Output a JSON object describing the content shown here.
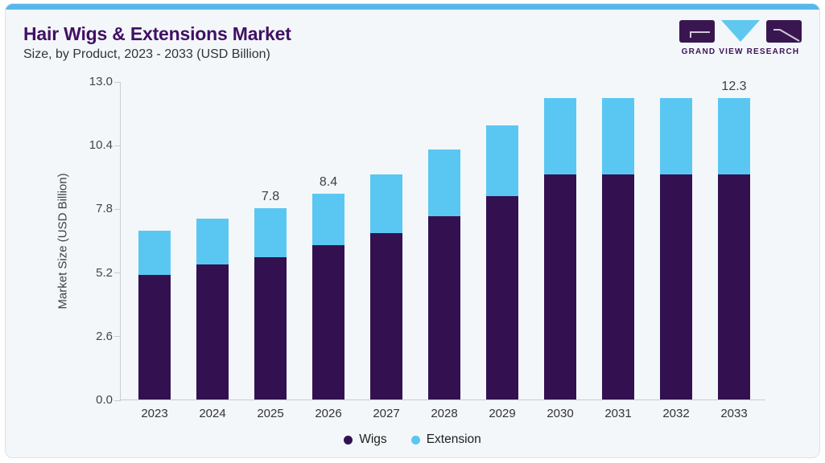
{
  "header": {
    "title": "Hair Wigs & Extensions Market",
    "subtitle": "Size, by Product, 2023 - 2033 (USD Billion)"
  },
  "logo": {
    "text": "GRAND VIEW RESEARCH",
    "block_color": "#3a1650",
    "triangle_color": "#5fc8ef",
    "glyph_line_color": "#cfcad6"
  },
  "colors": {
    "accent_bar": "#57b7e9",
    "card_background": "#f3f7fa",
    "card_border": "#d9e1e8",
    "axis_line": "#c7ccd3",
    "wigs_purple": "#331151",
    "extension_blue": "#5ac7f2",
    "title_purple": "#421064"
  },
  "chart_data": {
    "type": "bar",
    "stacked": true,
    "title": "Hair Wigs & Extensions Market Size, by Product, 2023 - 2033 (USD Billion)",
    "ylabel": "Market Size (USD Billion)",
    "xlabel": "",
    "categories": [
      "2023",
      "2024",
      "2025",
      "2026",
      "2027",
      "2028",
      "2029",
      "2030",
      "2031",
      "2032",
      "2033"
    ],
    "series": [
      {
        "name": "Wigs",
        "color": "#331151",
        "values": [
          5.1,
          5.5,
          5.8,
          6.3,
          6.8,
          7.5,
          8.3,
          9.2,
          9.2,
          9.2,
          9.2
        ]
      },
      {
        "name": "Extension",
        "color": "#5ac7f2",
        "values": [
          1.8,
          1.9,
          2.0,
          2.1,
          2.4,
          2.7,
          2.9,
          3.1,
          3.1,
          3.1,
          3.1
        ]
      }
    ],
    "totals": [
      6.9,
      7.4,
      7.8,
      8.4,
      9.2,
      10.2,
      11.2,
      12.3,
      12.3,
      12.3,
      12.3
    ],
    "data_labels": {
      "2025": "7.8",
      "2026": "8.4",
      "2033": "12.3"
    },
    "yticks": [
      0.0,
      2.6,
      5.2,
      7.8,
      10.4,
      13.0
    ],
    "ytick_labels": [
      "0.0",
      "2.6",
      "5.2",
      "7.8",
      "10.4",
      "13.0"
    ],
    "ylim": [
      0,
      13
    ],
    "grid": false,
    "legend_position": "bottom"
  }
}
